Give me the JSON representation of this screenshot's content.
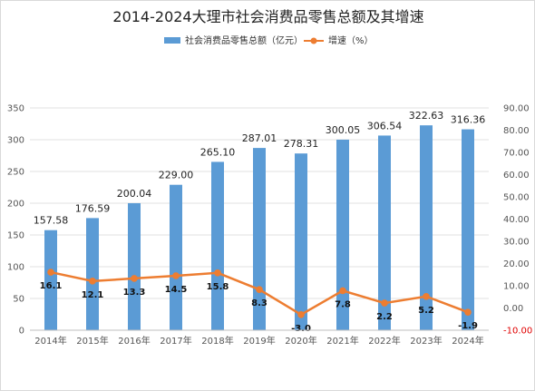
{
  "chart_data": {
    "type": "bar+line",
    "title": "2014-2024大理市社会消费品零售总额及其增速",
    "categories": [
      "2014年",
      "2015年",
      "2016年",
      "2017年",
      "2018年",
      "2019年",
      "2020年",
      "2021年",
      "2022年",
      "2023年",
      "2024年"
    ],
    "series": [
      {
        "name": "社会消费品零售总额（亿元）",
        "type": "bar",
        "axis": "left",
        "color": "#5b9bd5",
        "values": [
          157.58,
          176.59,
          200.04,
          229.0,
          265.1,
          287.01,
          278.31,
          300.05,
          306.54,
          322.63,
          316.36
        ],
        "labels": [
          "157.58",
          "176.59",
          "200.04",
          "229.00",
          "265.10",
          "287.01",
          "278.31",
          "300.05",
          "306.54",
          "322.63",
          "316.36"
        ]
      },
      {
        "name": "增速（%）",
        "type": "line",
        "axis": "right",
        "color": "#ed7d31",
        "values": [
          16.1,
          12.1,
          13.3,
          14.5,
          15.8,
          8.3,
          -3.0,
          7.8,
          2.2,
          5.2,
          -1.9
        ],
        "labels": [
          "16.1",
          "12.1",
          "13.3",
          "14.5",
          "15.8",
          "8.3",
          "-3.0",
          "7.8",
          "2.2",
          "5.2",
          "-1.9"
        ]
      }
    ],
    "y_left": {
      "min": 0,
      "max": 350,
      "ticks": [
        "0",
        "50",
        "100",
        "150",
        "200",
        "250",
        "300",
        "350"
      ]
    },
    "y_right": {
      "min": -10,
      "max": 90,
      "ticks": [
        "-10.00",
        "0.00",
        "10.00",
        "20.00",
        "30.00",
        "40.00",
        "50.00",
        "60.00",
        "70.00",
        "80.00",
        "90.00"
      ]
    },
    "grid": true,
    "legend_position": "top"
  }
}
